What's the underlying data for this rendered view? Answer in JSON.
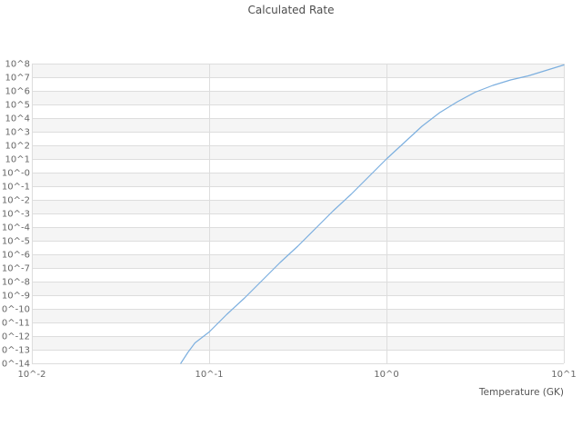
{
  "chart_data": {
    "type": "line",
    "title": "Calculated Rate",
    "xlabel": "Temperature (GK)",
    "ylabel": "",
    "x_scale": "log10",
    "y_scale": "log10",
    "x_range_log10": [
      -2,
      1
    ],
    "y_range_log10": [
      -14,
      8
    ],
    "x_tick_positions_log10": [
      -2,
      -1,
      0,
      1
    ],
    "x_tick_labels": [
      "10^-2",
      "10^-1",
      "10^0",
      "10^1"
    ],
    "y_tick_labels": [
      "10^8",
      "10^7",
      "10^6",
      "10^5",
      "10^4",
      "10^3",
      "10^2",
      "10^1",
      "10^-0",
      "10^-1",
      "10^-2",
      "10^-3",
      "10^-4",
      "10^-5",
      "10^-6",
      "10^-7",
      "10^-8",
      "10^-9",
      "0^-10",
      "0^-11",
      "0^-12",
      "0^-13",
      "0^-14"
    ],
    "grid": true,
    "legend": false,
    "colors": {
      "line": "#7cafdf",
      "grid": "#dddddd",
      "band": "#f5f5f5",
      "tick_text": "#666666",
      "title_text": "#4d4d4d",
      "background": "#ffffff"
    },
    "series": [
      {
        "name": "calculated-rate",
        "points_log10": [
          [
            -1.16,
            -14.0
          ],
          [
            -1.12,
            -13.2
          ],
          [
            -1.08,
            -12.5
          ],
          [
            -1.0,
            -11.7
          ],
          [
            -0.9,
            -10.4
          ],
          [
            -0.8,
            -9.2
          ],
          [
            -0.7,
            -7.9
          ],
          [
            -0.6,
            -6.6
          ],
          [
            -0.5,
            -5.4
          ],
          [
            -0.4,
            -4.1
          ],
          [
            -0.3,
            -2.8
          ],
          [
            -0.2,
            -1.6
          ],
          [
            -0.1,
            -0.3
          ],
          [
            0.0,
            1.0
          ],
          [
            0.1,
            2.2
          ],
          [
            0.2,
            3.4
          ],
          [
            0.3,
            4.4
          ],
          [
            0.4,
            5.2
          ],
          [
            0.5,
            5.9
          ],
          [
            0.6,
            6.4
          ],
          [
            0.7,
            6.8
          ],
          [
            0.8,
            7.1
          ],
          [
            0.9,
            7.5
          ],
          [
            1.0,
            7.9
          ]
        ]
      }
    ]
  }
}
